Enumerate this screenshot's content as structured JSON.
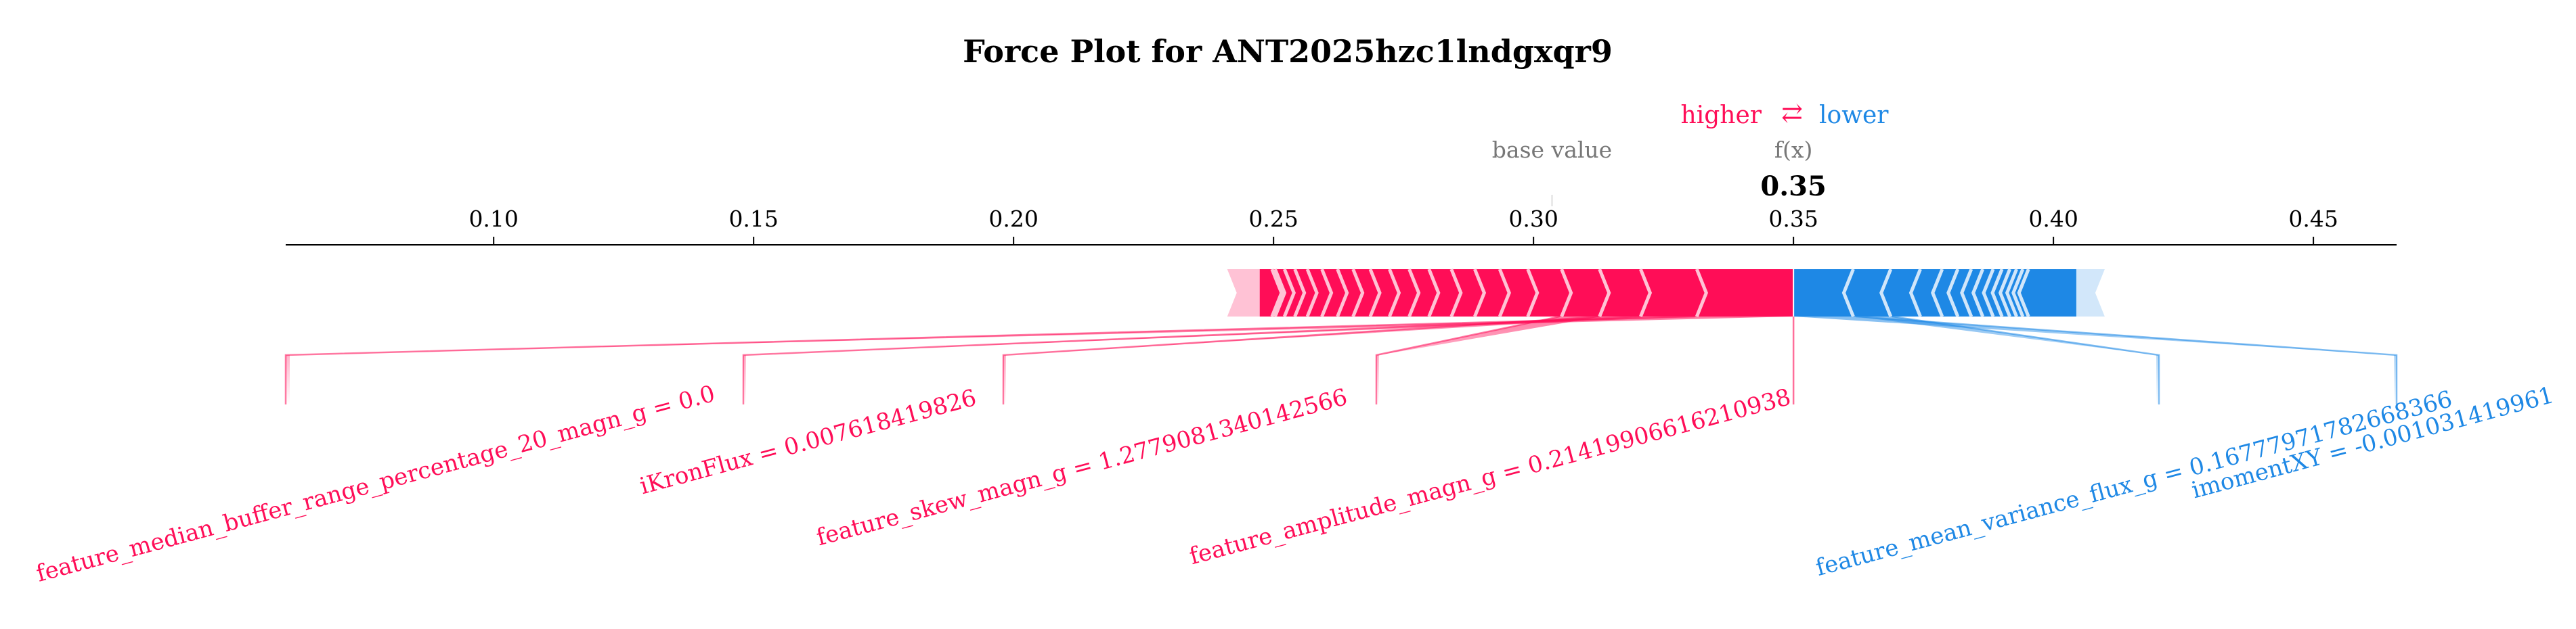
{
  "chart_data": {
    "type": "force",
    "title": "Force Plot for ANT2025hzc1lndgxqr9",
    "legend": {
      "higher_label": "higher",
      "arrow_glyph": "⇄",
      "lower_label": "lower"
    },
    "base_value_label": "base value",
    "output_label": "f(x)",
    "output_value": 0.35,
    "output_value_text": "0.35",
    "base_value": 0.302,
    "xlim": [
      0.06,
      0.466
    ],
    "x_ticks": [
      {
        "value": 0.1,
        "label": "0.10"
      },
      {
        "value": 0.15,
        "label": "0.15"
      },
      {
        "value": 0.2,
        "label": "0.20"
      },
      {
        "value": 0.25,
        "label": "0.25"
      },
      {
        "value": 0.3,
        "label": "0.30"
      },
      {
        "value": 0.35,
        "label": "0.35"
      },
      {
        "value": 0.4,
        "label": "0.40"
      },
      {
        "value": 0.45,
        "label": "0.45"
      }
    ],
    "positive_bar": {
      "start": 0.245,
      "end": 0.35,
      "color": "#ff0d57"
    },
    "negative_bar": {
      "start": 0.35,
      "end": 0.407,
      "color": "#1e88e5"
    },
    "positive_dividers": [
      0.2497,
      0.2503,
      0.2521,
      0.2541,
      0.2565,
      0.2593,
      0.2623,
      0.2653,
      0.2686,
      0.2723,
      0.2761,
      0.2799,
      0.2842,
      0.2887,
      0.2935,
      0.2989,
      0.3054,
      0.3127,
      0.3206,
      0.3314
    ],
    "negative_dividers": [
      0.3615,
      0.3687,
      0.3744,
      0.3786,
      0.3816,
      0.3842,
      0.3864,
      0.3884,
      0.3901,
      0.3916,
      0.3929,
      0.3941,
      0.3952
    ],
    "positive_features": [
      {
        "label": "feature_median_buffer_range_percentage_20_magn_g = 0.0",
        "start": 0.331,
        "end": 0.35
      },
      {
        "label": "iKronFlux = 0.007618419826",
        "start": 0.321,
        "end": 0.331
      },
      {
        "label": "feature_skew_magn_g = 1.2779081340142566",
        "start": 0.313,
        "end": 0.321
      },
      {
        "label": "feature_amplitude_magn_g = 0.21419906616210938",
        "start": 0.305,
        "end": 0.313
      }
    ],
    "negative_features": [
      {
        "label": "feature_mean_variance_flux_g = 0.16777971782668366",
        "start": 0.35,
        "end": 0.362
      },
      {
        "label": "imomentXY = -0.001031419961",
        "start": 0.362,
        "end": 0.369
      }
    ]
  }
}
